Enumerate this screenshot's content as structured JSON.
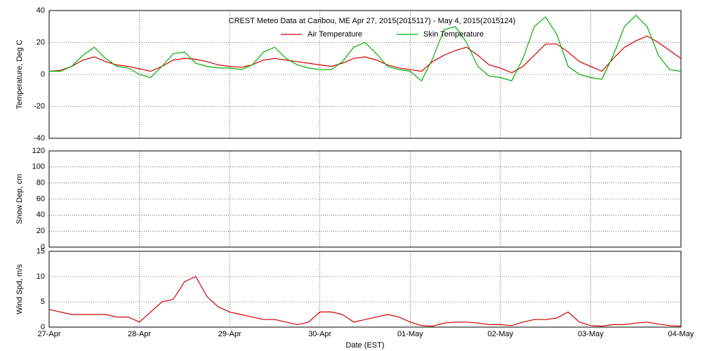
{
  "chart_data": [
    {
      "type": "line",
      "title": "CREST Meteo Data at Caribou, ME   Apr 27, 2015(2015117) - May  4, 2015(2015124)",
      "ylabel": "Temperature, Deg C",
      "legend": "top",
      "grid": true,
      "ylim": [
        -40,
        40
      ],
      "yticks": [
        -40,
        -20,
        0,
        20,
        40
      ],
      "xlim": [
        0,
        7
      ],
      "xticks": [
        0,
        1,
        2,
        3,
        4,
        5,
        6,
        7
      ],
      "x": [
        0,
        0.125,
        0.25,
        0.375,
        0.5,
        0.625,
        0.75,
        0.875,
        1,
        1.125,
        1.25,
        1.375,
        1.5,
        1.625,
        1.75,
        1.875,
        2,
        2.125,
        2.25,
        2.375,
        2.5,
        2.625,
        2.75,
        2.875,
        3,
        3.125,
        3.25,
        3.375,
        3.5,
        3.625,
        3.75,
        3.875,
        4,
        4.125,
        4.25,
        4.375,
        4.5,
        4.625,
        4.75,
        4.875,
        5,
        5.125,
        5.25,
        5.375,
        5.5,
        5.625,
        5.75,
        5.875,
        6,
        6.125,
        6.25,
        6.375,
        6.5,
        6.625,
        6.75,
        6.875,
        7
      ],
      "series": [
        {
          "name": "Air Temperature",
          "color": "#d00000",
          "values": [
            2,
            2.5,
            5,
            9,
            11,
            8,
            6,
            5,
            3.5,
            2,
            5,
            9,
            10,
            9.5,
            8,
            6,
            5,
            4.5,
            6,
            9,
            10,
            9,
            8,
            7,
            6,
            5,
            7,
            10,
            11,
            9,
            6,
            4,
            3,
            2,
            8,
            12,
            15,
            17,
            12,
            6,
            4,
            1,
            5,
            12,
            19,
            19,
            14,
            8,
            5,
            2,
            10,
            17,
            21,
            24,
            20,
            15,
            10
          ]
        },
        {
          "name": "Skin Temperature",
          "color": "#00b000",
          "values": [
            2,
            2,
            5,
            12,
            17,
            10,
            5,
            4,
            0,
            -2,
            5,
            13,
            14,
            7,
            5,
            4,
            4,
            3,
            6,
            14,
            17,
            10,
            6,
            4,
            3,
            3,
            8,
            17,
            20,
            13,
            5,
            3,
            2,
            -4,
            10,
            28,
            30,
            20,
            5,
            -1,
            -2,
            -4,
            10,
            30,
            36,
            25,
            5,
            0,
            -2,
            -3,
            12,
            30,
            37,
            30,
            12,
            3,
            2
          ]
        }
      ]
    },
    {
      "type": "line",
      "ylabel": "Snow Dep, cm",
      "grid": true,
      "ylim": [
        0,
        120
      ],
      "yticks": [
        0,
        20,
        40,
        60,
        80,
        100,
        120
      ],
      "xlim": [
        0,
        7
      ],
      "xticks": [
        0,
        1,
        2,
        3,
        4,
        5,
        6,
        7
      ],
      "series": []
    },
    {
      "type": "line",
      "ylabel": "Wind Spd, m/s",
      "xlabel": "Date (EST)",
      "grid": true,
      "ylim": [
        0,
        15
      ],
      "yticks": [
        0,
        5,
        10,
        15
      ],
      "xlim": [
        0,
        7
      ],
      "xticks": [
        {
          "value": 0,
          "label": "27-Apr"
        },
        {
          "value": 1,
          "label": "28-Apr"
        },
        {
          "value": 2,
          "label": "29-Apr"
        },
        {
          "value": 3,
          "label": "30-Apr"
        },
        {
          "value": 4,
          "label": "01-May"
        },
        {
          "value": 5,
          "label": "02-May"
        },
        {
          "value": 6,
          "label": "03-May"
        },
        {
          "value": 7,
          "label": "04-May"
        }
      ],
      "x": [
        0,
        0.125,
        0.25,
        0.375,
        0.5,
        0.625,
        0.75,
        0.875,
        1,
        1.125,
        1.25,
        1.375,
        1.5,
        1.625,
        1.75,
        1.875,
        2,
        2.125,
        2.25,
        2.375,
        2.5,
        2.625,
        2.75,
        2.875,
        3,
        3.125,
        3.25,
        3.375,
        3.5,
        3.625,
        3.75,
        3.875,
        4,
        4.125,
        4.25,
        4.375,
        4.5,
        4.625,
        4.75,
        4.875,
        5,
        5.125,
        5.25,
        5.375,
        5.5,
        5.625,
        5.75,
        5.875,
        6,
        6.125,
        6.25,
        6.375,
        6.5,
        6.625,
        6.75,
        6.875,
        7
      ],
      "series": [
        {
          "color": "#d00000",
          "values": [
            3.5,
            3,
            2.5,
            2.5,
            2.5,
            2.5,
            2,
            2,
            1,
            3,
            5,
            5.5,
            9,
            10,
            6,
            4,
            3,
            2.5,
            2,
            1.5,
            1.5,
            1,
            0.5,
            1,
            3,
            3,
            2.5,
            1,
            1.5,
            2,
            2.5,
            2,
            1,
            0.3,
            0.2,
            0.8,
            1,
            1,
            0.8,
            0.5,
            0.5,
            0.3,
            1,
            1.5,
            1.5,
            1.8,
            3,
            1,
            0.3,
            0.2,
            0.5,
            0.5,
            0.8,
            1,
            0.6,
            0.3,
            0.2
          ]
        }
      ]
    }
  ]
}
